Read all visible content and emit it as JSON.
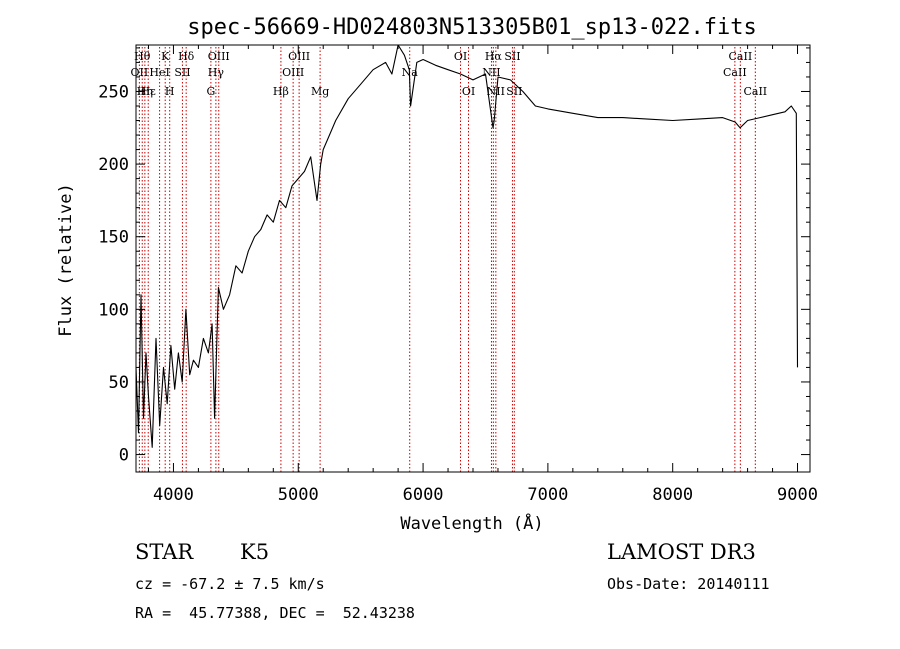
{
  "chart_data": {
    "type": "line",
    "title": "spec-56669-HD024803N513305B01_sp13-022.fits",
    "xlabel": "Wavelength (Å)",
    "ylabel": "Flux (relative)",
    "xlim": [
      3700,
      9100
    ],
    "ylim": [
      -12,
      282
    ],
    "xticks": [
      4000,
      5000,
      6000,
      7000,
      8000,
      9000
    ],
    "yticks": [
      0,
      50,
      100,
      150,
      200,
      250
    ],
    "series": [
      {
        "name": "spectrum",
        "x": [
          3700,
          3720,
          3740,
          3760,
          3780,
          3800,
          3830,
          3860,
          3890,
          3920,
          3950,
          3980,
          4010,
          4040,
          4070,
          4100,
          4130,
          4160,
          4200,
          4240,
          4280,
          4310,
          4330,
          4360,
          4400,
          4450,
          4500,
          4550,
          4600,
          4650,
          4700,
          4750,
          4800,
          4850,
          4900,
          4950,
          5000,
          5050,
          5100,
          5150,
          5180,
          5200,
          5250,
          5300,
          5400,
          5500,
          5600,
          5700,
          5750,
          5800,
          5850,
          5890,
          5900,
          5950,
          6000,
          6100,
          6200,
          6300,
          6400,
          6500,
          6560,
          6570,
          6600,
          6700,
          6800,
          6900,
          7000,
          7200,
          7400,
          7600,
          7800,
          8000,
          8200,
          8400,
          8500,
          8540,
          8600,
          8700,
          8800,
          8900,
          8950,
          8990,
          9000
        ],
        "y": [
          60,
          15,
          110,
          25,
          70,
          40,
          5,
          80,
          20,
          60,
          35,
          75,
          45,
          70,
          50,
          100,
          55,
          65,
          60,
          80,
          70,
          90,
          25,
          115,
          100,
          110,
          130,
          125,
          140,
          150,
          155,
          165,
          160,
          175,
          170,
          185,
          190,
          195,
          205,
          175,
          200,
          210,
          220,
          230,
          245,
          255,
          265,
          270,
          262,
          282,
          275,
          265,
          240,
          270,
          272,
          268,
          265,
          262,
          258,
          262,
          225,
          230,
          260,
          258,
          250,
          240,
          238,
          235,
          232,
          232,
          231,
          230,
          231,
          232,
          229,
          225,
          230,
          232,
          234,
          236,
          240,
          235,
          60
        ]
      }
    ],
    "line_markers": [
      {
        "wavelength": 3727,
        "label": "OII",
        "row": 2
      },
      {
        "wavelength": 3750,
        "label": "Hθ",
        "row": 1
      },
      {
        "wavelength": 3771,
        "label": "Hη",
        "row": 3
      },
      {
        "wavelength": 3798,
        "label": "Hε",
        "row": 3
      },
      {
        "wavelength": 3889,
        "label": "HeI",
        "row": 2
      },
      {
        "wavelength": 3934,
        "label": "K",
        "row": 1
      },
      {
        "wavelength": 3970,
        "label": "H",
        "row": 3
      },
      {
        "wavelength": 4072,
        "label": "SII",
        "row": 2
      },
      {
        "wavelength": 4102,
        "label": "Hδ",
        "row": 1
      },
      {
        "wavelength": 4300,
        "label": "G",
        "row": 3
      },
      {
        "wavelength": 4340,
        "label": "Hγ",
        "row": 2
      },
      {
        "wavelength": 4363,
        "label": "OIII",
        "row": 1
      },
      {
        "wavelength": 4861,
        "label": "Hβ",
        "row": 3
      },
      {
        "wavelength": 4959,
        "label": "OIII",
        "row": 2
      },
      {
        "wavelength": 5007,
        "label": "OIII",
        "row": 1
      },
      {
        "wavelength": 5175,
        "label": "Mg",
        "row": 3
      },
      {
        "wavelength": 5893,
        "label": "Na",
        "row": 2
      },
      {
        "wavelength": 6300,
        "label": "OI",
        "row": 1
      },
      {
        "wavelength": 6364,
        "label": "OI",
        "row": 3
      },
      {
        "wavelength": 6548,
        "label": "NII",
        "row": 2
      },
      {
        "wavelength": 6563,
        "label": "Hα",
        "row": 1
      },
      {
        "wavelength": 6583,
        "label": "NII",
        "row": 3
      },
      {
        "wavelength": 6716,
        "label": "SII",
        "row": 1
      },
      {
        "wavelength": 6731,
        "label": "SII",
        "row": 3
      },
      {
        "wavelength": 8498,
        "label": "CaII",
        "row": 2
      },
      {
        "wavelength": 8542,
        "label": "CaII",
        "row": 1
      },
      {
        "wavelength": 8662,
        "label": "CaII",
        "row": 3
      }
    ],
    "marker_color": "#cc0000",
    "line_color": "#000000"
  },
  "info": {
    "object_class": "STAR",
    "subclass": "K5",
    "survey": "LAMOST DR3",
    "redshift": "cz = -67.2 ± 7.5 km/s",
    "obs_date": "Obs-Date: 20140111",
    "coords": "RA =  45.77388, DEC =  52.43238"
  }
}
